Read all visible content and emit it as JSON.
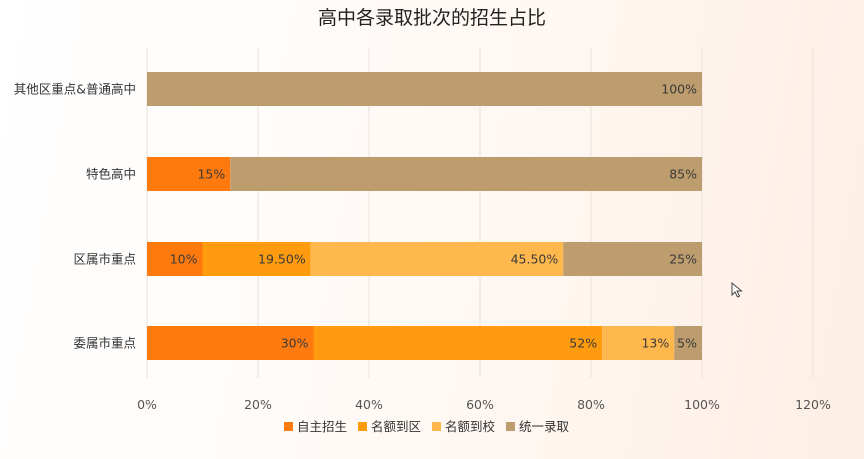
{
  "chart_data": {
    "type": "bar",
    "orientation": "horizontal",
    "stacked": true,
    "title": "高中各录取批次的招生占比",
    "categories": [
      "其他区重点&普通高中",
      "特色高中",
      "区属市重点",
      "委属市重点"
    ],
    "series": [
      {
        "name": "自主招生",
        "color": "#ff7a0e",
        "values": [
          0,
          15,
          10,
          30
        ],
        "labels": [
          "",
          "15%",
          "10%",
          "30%"
        ]
      },
      {
        "name": "名额到区",
        "color": "#ff9b0f",
        "values": [
          0,
          0,
          19.5,
          52
        ],
        "labels": [
          "",
          "",
          "19.50%",
          "52%"
        ]
      },
      {
        "name": "名额到校",
        "color": "#ffb84d",
        "values": [
          0,
          0,
          45.5,
          13
        ],
        "labels": [
          "",
          "",
          "45.50%",
          "13%"
        ]
      },
      {
        "name": "统一录取",
        "color": "#bd9c6e",
        "values": [
          100,
          85,
          25,
          5
        ],
        "labels": [
          "100%",
          "85%",
          "25%",
          "5%"
        ]
      }
    ],
    "xlim": [
      0,
      120
    ],
    "xticks": [
      "0%",
      "20%",
      "40%",
      "60%",
      "80%",
      "100%",
      "120%"
    ],
    "xtick_values": [
      0,
      20,
      40,
      60,
      80,
      100,
      120
    ],
    "grid": true,
    "legend_position": "bottom"
  }
}
